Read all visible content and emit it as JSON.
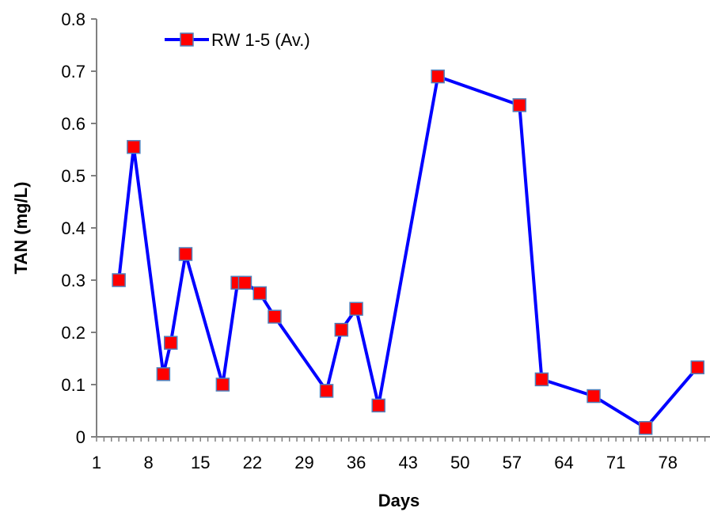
{
  "chart_data": {
    "type": "line",
    "title": "",
    "xlabel": "Days",
    "ylabel": "TAN (mg/L)",
    "xlim": [
      1,
      84
    ],
    "ylim": [
      0,
      0.8
    ],
    "x_ticks": [
      1,
      8,
      15,
      22,
      29,
      36,
      43,
      50,
      57,
      64,
      71,
      78
    ],
    "y_ticks": [
      0,
      0.1,
      0.2,
      0.3,
      0.4,
      0.5,
      0.6,
      0.7,
      0.8
    ],
    "y_tick_labels": [
      "0",
      "0.1",
      "0.2",
      "0.3",
      "0.4",
      "0.5",
      "0.6",
      "0.7",
      "0.8"
    ],
    "grid": false,
    "legend_position": "top-left",
    "series": [
      {
        "name": "RW 1-5 (Av.)",
        "line_color": "#0000ff",
        "marker_color": "#ff0000",
        "marker": "square",
        "x": [
          4,
          6,
          10,
          11,
          13,
          18,
          20,
          21,
          23,
          25,
          32,
          34,
          36,
          39,
          47,
          58,
          61,
          68,
          75,
          82
        ],
        "y": [
          0.3,
          0.555,
          0.12,
          0.18,
          0.35,
          0.1,
          0.295,
          0.295,
          0.275,
          0.23,
          0.088,
          0.205,
          0.245,
          0.06,
          0.69,
          0.635,
          0.11,
          0.078,
          0.017,
          0.133
        ]
      }
    ]
  }
}
